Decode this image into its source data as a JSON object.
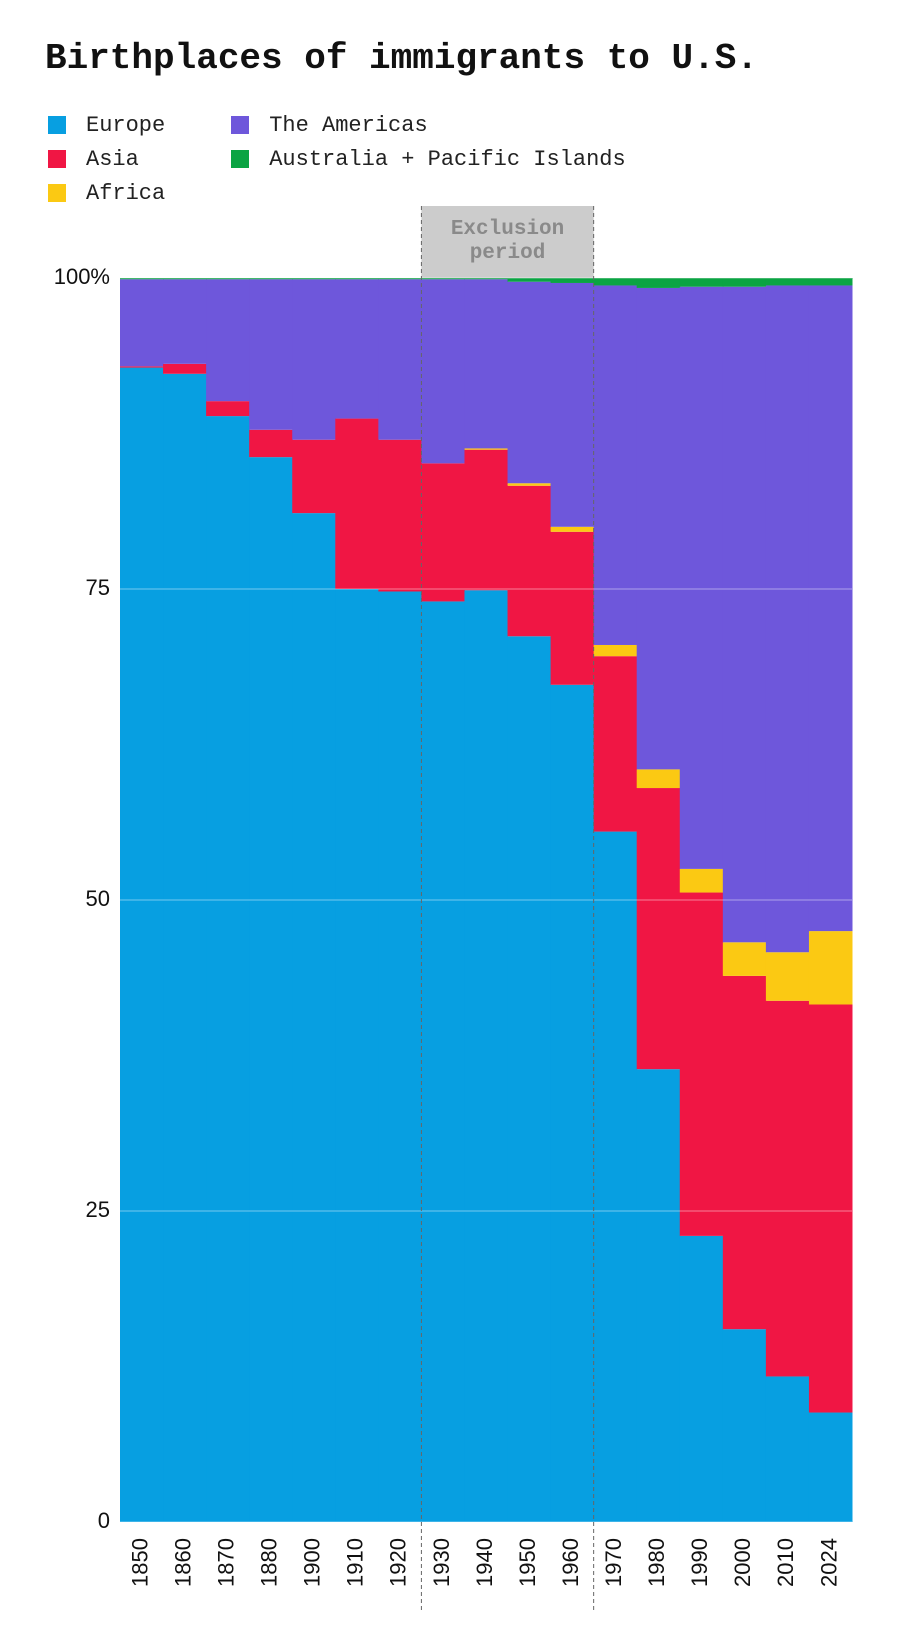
{
  "chart_data": {
    "type": "stacked-bar",
    "title": "Birthplaces of immigrants to U.S.",
    "categories": [
      "1850",
      "1860",
      "1870",
      "1880",
      "1900",
      "1910",
      "1920",
      "1930",
      "1940",
      "1950",
      "1960",
      "1970",
      "1980",
      "1990",
      "2000",
      "2010",
      "2024"
    ],
    "series": [
      {
        "name": "Europe",
        "color": "#079fe1",
        "values": [
          92.8,
          92.3,
          88.9,
          85.6,
          81.1,
          75.0,
          74.8,
          74.0,
          74.9,
          71.2,
          67.3,
          55.5,
          36.4,
          23.0,
          15.5,
          11.7,
          8.8
        ]
      },
      {
        "name": "Asia",
        "color": "#f01644",
        "values": [
          0.1,
          0.8,
          1.2,
          2.2,
          5.9,
          13.7,
          12.2,
          11.1,
          11.3,
          12.1,
          12.3,
          14.1,
          22.6,
          27.6,
          28.4,
          30.2,
          32.8
        ]
      },
      {
        "name": "Africa",
        "color": "#fbc913",
        "values": [
          0,
          0,
          0,
          0,
          0,
          0,
          0,
          0,
          0.1,
          0.2,
          0.4,
          0.9,
          1.5,
          1.9,
          2.7,
          3.9,
          5.9
        ]
      },
      {
        "name": "The Americas",
        "color": "#6e57db",
        "values": [
          7.0,
          6.8,
          9.8,
          12.1,
          12.9,
          11.2,
          12.9,
          14.8,
          13.6,
          16.2,
          19.6,
          28.9,
          38.7,
          46.8,
          52.7,
          53.6,
          51.9
        ]
      },
      {
        "name": "Australia + Pacific Islands",
        "color": "#0ba443",
        "values": [
          0.1,
          0.1,
          0.1,
          0.1,
          0.1,
          0.1,
          0.1,
          0.1,
          0.1,
          0.3,
          0.4,
          0.6,
          0.8,
          0.7,
          0.7,
          0.6,
          0.6
        ]
      }
    ],
    "annotation": "Exclusion period",
    "ylim": [
      0,
      100
    ],
    "yticks": [
      0,
      25,
      50,
      75,
      {
        "value": 100,
        "label": "100%"
      }
    ],
    "grid": true
  }
}
